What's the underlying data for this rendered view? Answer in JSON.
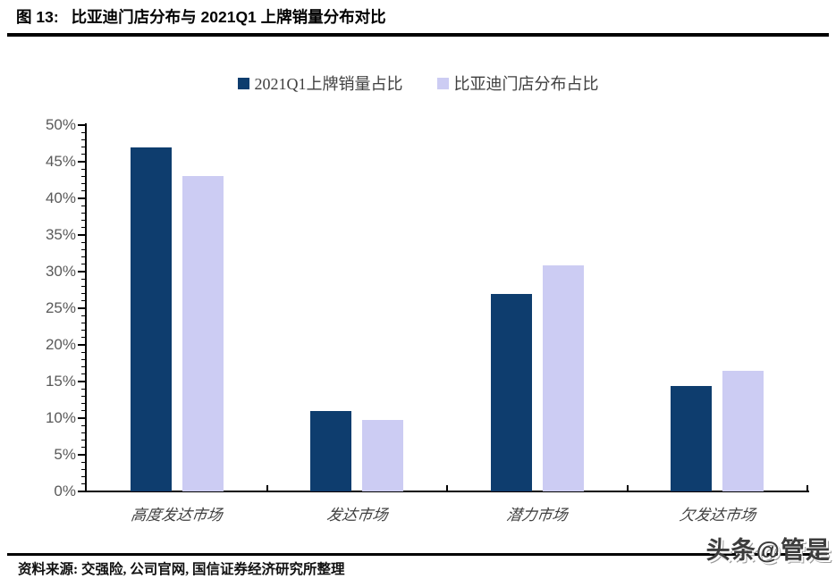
{
  "figure": {
    "label": "图 13:",
    "title": "比亚迪门店分布与 2021Q1 上牌销量分布对比"
  },
  "chart_data": {
    "type": "bar",
    "categories": [
      "高度发达市场",
      "发达市场",
      "潜力市场",
      "欠发达市场"
    ],
    "series": [
      {
        "name": "2021Q1上牌销量占比",
        "color": "#0E3D6E",
        "values": [
          47,
          11,
          27,
          14.4
        ]
      },
      {
        "name": "比亚迪门店分布占比",
        "color": "#CCCCF3",
        "values": [
          43,
          9.7,
          30.8,
          16.5
        ]
      }
    ],
    "title": "",
    "xlabel": "",
    "ylabel": "",
    "ylim": [
      0,
      50
    ],
    "ytick_step": 5,
    "ytick_labels": [
      "0%",
      "5%",
      "10%",
      "15%",
      "20%",
      "25%",
      "30%",
      "35%",
      "40%",
      "45%",
      "50%"
    ],
    "minor_tick_step": 1,
    "grid": false,
    "legend_position": "top-center"
  },
  "footer": {
    "source": "资料来源: 交强险, 公司官网, 国信证券经济研究所整理",
    "watermark": "头条@管是"
  }
}
